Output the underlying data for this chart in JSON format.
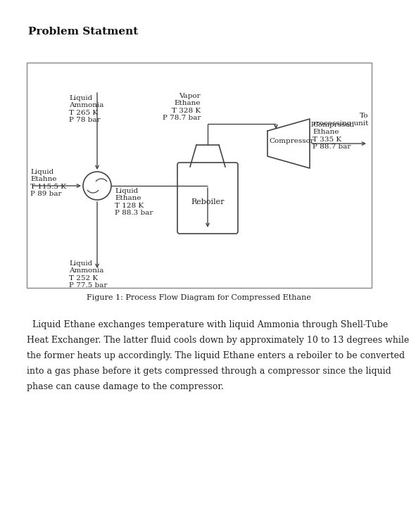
{
  "title": "Problem Statment",
  "figure_caption": "Figure 1: Process Flow Diagram for Compressed Ethane",
  "paragraph_lines": [
    "  Liquid Ethane exchanges temperature with liquid Ammonia through Shell-Tube",
    "Heat Exchanger. The latter fluid cools down by approximately 10 to 13 degrees while",
    "the former heats up accordingly. The liquid Ethane enters a reboiler to be converted",
    "into a gas phase before it gets compressed through a compressor since the liquid",
    "phase can cause damage to the compressor."
  ],
  "labels": {
    "inlet_ethane": "Liquid\nEtahne\nT 115.5 K\nP 89 bar",
    "ammonia_in": "Liquid\nAmmonia\nT 265 K\nP 78 bar",
    "ammonia_out": "Liquid\nAmmonia\nT 252 K\nP 77.5 bar",
    "liquid_ethane_out": "Liquid\nEthane\nT 128 K\nP 88.3 bar",
    "vapor_ethane": "Vapor\nEthane\nT 328 K\nP 78.7 bar",
    "compressed_ethane": "Comprssed\nEthane\nT 335 K\nP 88.7 bar",
    "to_processing": "To\nprocessing unit",
    "reboiler": "Reboiler",
    "compressor": "Compressor"
  },
  "bg_color": "#ffffff",
  "line_color": "#444444",
  "text_color": "#222222"
}
